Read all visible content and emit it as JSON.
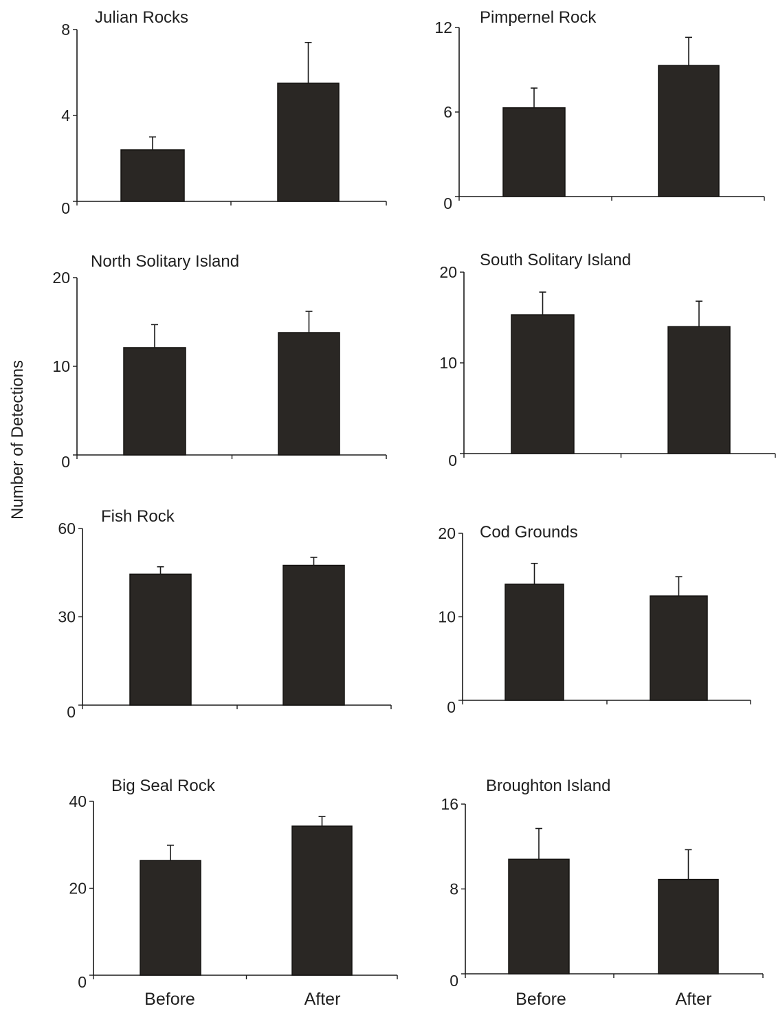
{
  "chart_data": {
    "ylabel": "Number of Detections",
    "categories": [
      "Before",
      "After"
    ],
    "panels": [
      {
        "type": "bar",
        "title": "Julian Rocks",
        "ylim": [
          0,
          8
        ],
        "yticks": [
          0,
          4,
          8
        ],
        "values": [
          2.4,
          5.5
        ],
        "errors": [
          0.6,
          1.9
        ]
      },
      {
        "type": "bar",
        "title": "Pimpernel Rock",
        "ylim": [
          0,
          12
        ],
        "yticks": [
          0,
          6,
          12
        ],
        "values": [
          6.3,
          9.3
        ],
        "errors": [
          1.4,
          2.0
        ]
      },
      {
        "type": "bar",
        "title": "North Solitary Island",
        "ylim": [
          0,
          20
        ],
        "yticks": [
          0,
          10,
          20
        ],
        "values": [
          12.1,
          13.8
        ],
        "errors": [
          2.6,
          2.4
        ]
      },
      {
        "type": "bar",
        "title": "South Solitary Island",
        "ylim": [
          0,
          20
        ],
        "yticks": [
          0,
          10,
          20
        ],
        "values": [
          15.3,
          14.0
        ],
        "errors": [
          2.5,
          2.8
        ]
      },
      {
        "type": "bar",
        "title": "Fish Rock",
        "ylim": [
          0,
          60
        ],
        "yticks": [
          0,
          30,
          60
        ],
        "values": [
          44.5,
          47.5
        ],
        "errors": [
          2.5,
          2.7
        ]
      },
      {
        "type": "bar",
        "title": "Cod Grounds",
        "ylim": [
          0,
          20
        ],
        "yticks": [
          0,
          10,
          20
        ],
        "values": [
          13.9,
          12.5
        ],
        "errors": [
          2.5,
          2.3
        ]
      },
      {
        "type": "bar",
        "title": "Big Seal Rock",
        "ylim": [
          0,
          40
        ],
        "yticks": [
          0,
          20,
          40
        ],
        "values": [
          26.4,
          34.3
        ],
        "errors": [
          3.5,
          2.2
        ]
      },
      {
        "type": "bar",
        "title": "Broughton Island",
        "ylim": [
          0,
          16
        ],
        "yticks": [
          0,
          8,
          16
        ],
        "values": [
          10.8,
          8.9
        ],
        "errors": [
          2.9,
          2.8
        ]
      }
    ]
  }
}
